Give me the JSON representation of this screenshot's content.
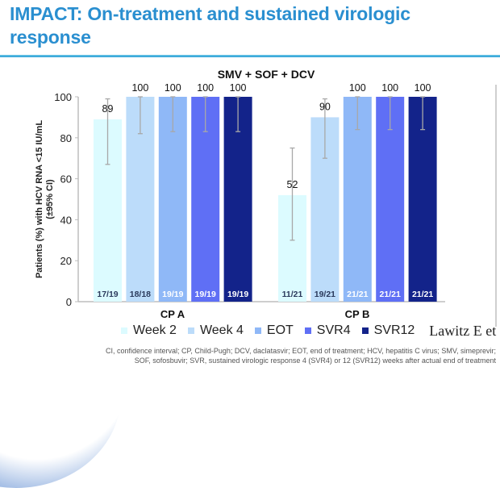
{
  "slide": {
    "title_line1": "IMPACT: On-treatment and sustained virologic",
    "title_line2": "response",
    "title_color": "#2a8fd0",
    "citation": "Lawitz E et",
    "footnote_line1": "CI, confidence interval; CP, Child-Pugh; DCV, daclatasvir; EOT, end of treatment; HCV, hepatitis C virus; SMV, simeprevir;",
    "footnote_line2": "SOF, sofosbuvir; SVR, sustained virologic response 4 (SVR4) or 12 (SVR12) weeks after actual end of treatment"
  },
  "chart_data": {
    "type": "bar",
    "title": "SMV + SOF + DCV",
    "xlabel": "",
    "ylabel_line1": "Patients (%) with HCV RNA <15 IU/mL",
    "ylabel_line2": "(±95% CI)",
    "ylim": [
      0,
      100
    ],
    "yticks": [
      0,
      20,
      40,
      60,
      80,
      100
    ],
    "grid": false,
    "legend_position": "bottom",
    "categories": [
      "CP A",
      "CP B"
    ],
    "series": [
      {
        "name": "Week 2",
        "color": "#dcfbff",
        "label_color": "#2b3a5c",
        "values": [
          89,
          52
        ],
        "ci_low": [
          67,
          30
        ],
        "ci_high": [
          99,
          75
        ],
        "n": [
          "17/19",
          "11/21"
        ]
      },
      {
        "name": "Week 4",
        "color": "#bcdcfa",
        "label_color": "#2b3a5c",
        "values": [
          100,
          90
        ],
        "ci_low": [
          82,
          70
        ],
        "ci_high": [
          100,
          99
        ],
        "n": [
          "18/18",
          "19/21"
        ]
      },
      {
        "name": "EOT",
        "color": "#8fb8f7",
        "label_color": "#ffffff",
        "values": [
          100,
          100
        ],
        "ci_low": [
          83,
          84
        ],
        "ci_high": [
          100,
          100
        ],
        "n": [
          "19/19",
          "21/21"
        ]
      },
      {
        "name": "SVR4",
        "color": "#5f6ff5",
        "label_color": "#ffffff",
        "values": [
          100,
          100
        ],
        "ci_low": [
          83,
          84
        ],
        "ci_high": [
          100,
          100
        ],
        "n": [
          "19/19",
          "21/21"
        ]
      },
      {
        "name": "SVR12",
        "color": "#13238a",
        "label_color": "#ffffff",
        "values": [
          100,
          100
        ],
        "ci_low": [
          83,
          84
        ],
        "ci_high": [
          100,
          100
        ],
        "n": [
          "19/19",
          "21/21"
        ]
      }
    ]
  }
}
